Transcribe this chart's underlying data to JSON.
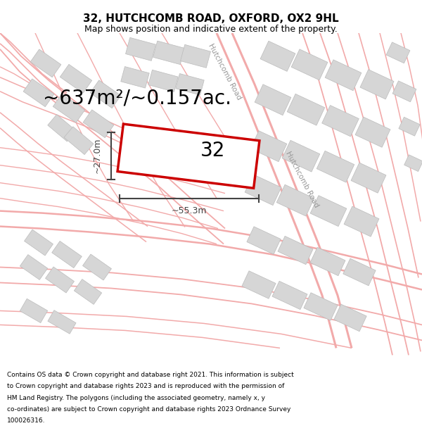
{
  "title": "32, HUTCHCOMB ROAD, OXFORD, OX2 9HL",
  "subtitle": "Map shows position and indicative extent of the property.",
  "area_text": "~637m²/~0.157ac.",
  "dim_width": "~55.3m",
  "dim_height": "~27.0m",
  "property_number": "32",
  "footer_lines": [
    "Contains OS data © Crown copyright and database right 2021. This information is subject",
    "to Crown copyright and database rights 2023 and is reproduced with the permission of",
    "HM Land Registry. The polygons (including the associated geometry, namely x, y",
    "co-ordinates) are subject to Crown copyright and database rights 2023 Ordnance Survey",
    "100026316."
  ],
  "bg_color": "#ffffff",
  "map_bg": "#ffffff",
  "road_color": "#f2aaaa",
  "property_color": "#cc0000",
  "building_color": "#d6d6d6",
  "building_edge": "#bbbbbb",
  "dim_color": "#444444",
  "road_label_color": "#999999",
  "title_fontsize": 11,
  "subtitle_fontsize": 9,
  "area_fontsize": 20,
  "number_fontsize": 20,
  "dim_fontsize": 9,
  "footer_fontsize": 6.5
}
